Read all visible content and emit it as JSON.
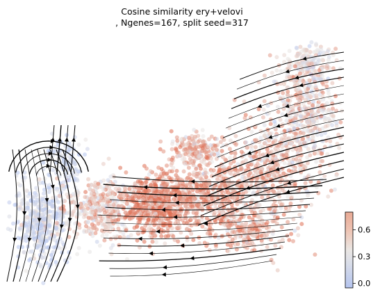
{
  "chart_data": {
    "type": "scatter",
    "title": "Cosine similarity ery+velovi",
    "subtitle": ", Ngenes=167, split seed=317",
    "xlabel": "",
    "ylabel": "",
    "axes_visible": false,
    "overlay": "velocity streamlines with arrowheads",
    "colormap": {
      "name": "coolwarm",
      "low_color": "#b4c4ee",
      "mid_color": "#eae6e3",
      "high_color": "#de6d52",
      "range": [
        -0.05,
        0.8
      ]
    },
    "colorbar": {
      "ticks": [
        0.0,
        0.3,
        0.6
      ],
      "tick_labels": [
        "0.0",
        "0.3",
        "0.6"
      ],
      "placement": "bottom-right"
    },
    "grid": false,
    "legend": "none"
  }
}
